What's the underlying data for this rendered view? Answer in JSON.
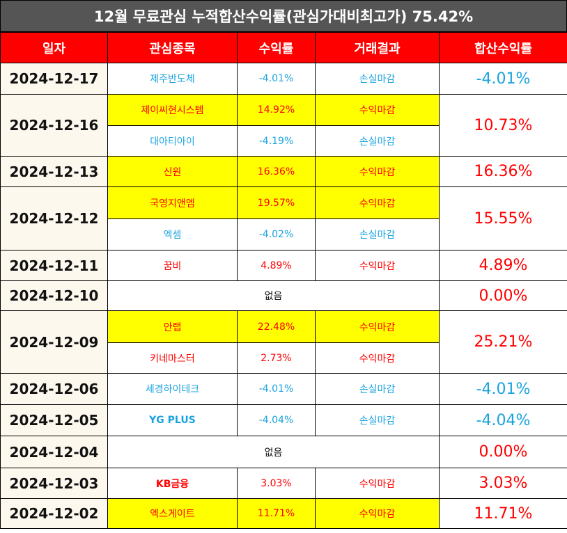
{
  "title": "12월 무료관심 누적합산수익률(관심가대비최고가) 75.42%",
  "headers": [
    "일자",
    "관심종목",
    "수익률",
    "거래결과",
    "합산수익률"
  ],
  "colors": {
    "header_bg": "#ff0000",
    "title_bg": "#555555",
    "highlight": "#ffff00",
    "profit": "#ff0000",
    "loss": "#1aa3e0",
    "date_bg": "#fdf8ee"
  },
  "rows": [
    {
      "date": "2024-12-17",
      "total": "-4.01%",
      "items": [
        {
          "stock": "제주반도체",
          "rate": "-4.01%",
          "result": "손실마감"
        }
      ]
    },
    {
      "date": "2024-12-16",
      "total": "10.73%",
      "items": [
        {
          "stock": "제이씨현시스템",
          "rate": "14.92%",
          "result": "수익마감"
        },
        {
          "stock": "대아티아이",
          "rate": "-4.19%",
          "result": "손실마감"
        }
      ]
    },
    {
      "date": "2024-12-13",
      "total": "16.36%",
      "items": [
        {
          "stock": "신원",
          "rate": "16.36%",
          "result": "수익마감"
        }
      ]
    },
    {
      "date": "2024-12-12",
      "total": "15.55%",
      "items": [
        {
          "stock": "국영지앤엠",
          "rate": "19.57%",
          "result": "수익마감"
        },
        {
          "stock": "엑셈",
          "rate": "-4.02%",
          "result": "손실마감"
        }
      ]
    },
    {
      "date": "2024-12-11",
      "total": "4.89%",
      "items": [
        {
          "stock": "꿈비",
          "rate": "4.89%",
          "result": "수익마감"
        }
      ]
    },
    {
      "date": "2024-12-10",
      "total": "0.00%",
      "none_label": "없음"
    },
    {
      "date": "2024-12-09",
      "total": "25.21%",
      "items": [
        {
          "stock": "안랩",
          "rate": "22.48%",
          "result": "수익마감"
        },
        {
          "stock": "키네마스터",
          "rate": "2.73%",
          "result": "수익마감"
        }
      ]
    },
    {
      "date": "2024-12-06",
      "total": "-4.01%",
      "items": [
        {
          "stock": "세경하이테크",
          "rate": "-4.01%",
          "result": "손실마감"
        }
      ]
    },
    {
      "date": "2024-12-05",
      "total": "-4.04%",
      "items": [
        {
          "stock": "YG PLUS",
          "rate": "-4.04%",
          "result": "손실마감"
        }
      ]
    },
    {
      "date": "2024-12-04",
      "total": "0.00%",
      "none_label": "없음"
    },
    {
      "date": "2024-12-03",
      "total": "3.03%",
      "items": [
        {
          "stock": "KB금융",
          "rate": "3.03%",
          "result": "수익마감"
        }
      ]
    },
    {
      "date": "2024-12-02",
      "total": "11.71%",
      "items": [
        {
          "stock": "엑스게이트",
          "rate": "11.71%",
          "result": "수익마감"
        }
      ]
    }
  ]
}
